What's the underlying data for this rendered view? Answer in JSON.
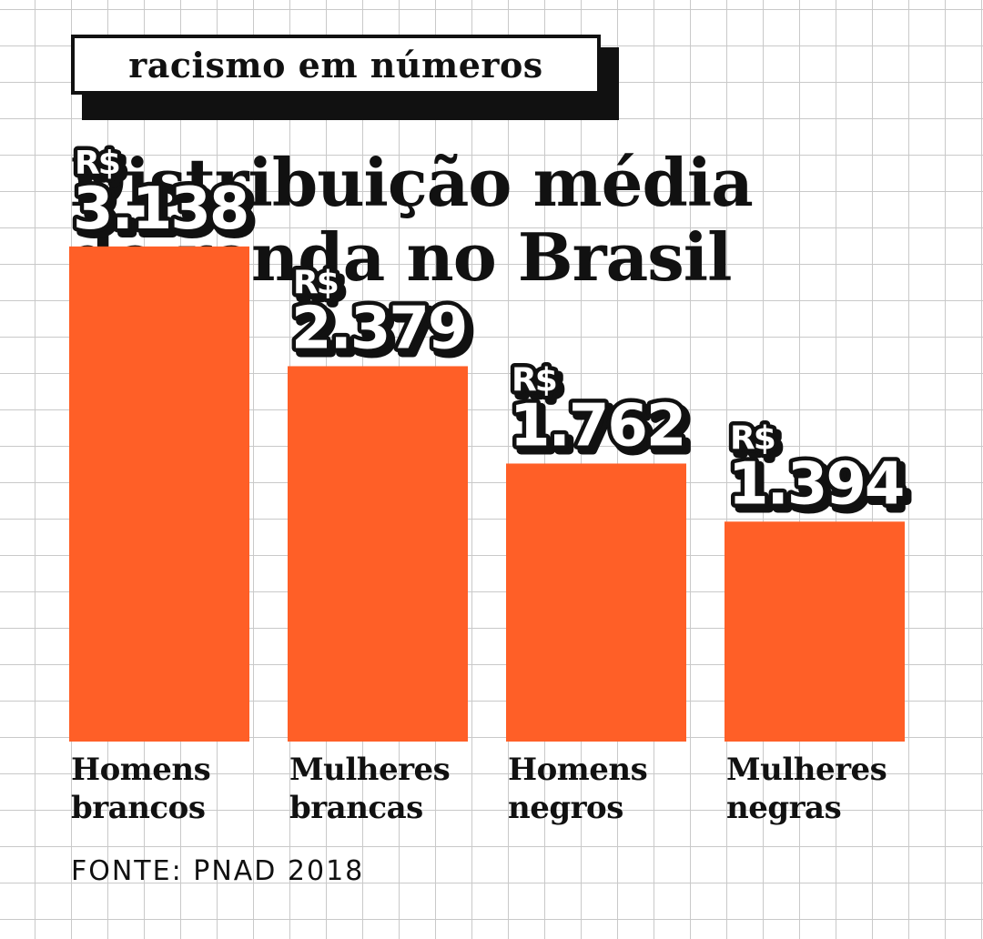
{
  "header": {
    "tag": "racismo em números"
  },
  "title": {
    "line1": "Distribuição média",
    "line2": "de renda no Brasil"
  },
  "source": "FONTE: PNAD 2018",
  "colors": {
    "bar": "#ff5f27",
    "text": "#111111",
    "grid": "#c9c9c9"
  },
  "chart_data": {
    "type": "bar",
    "title": "Distribuição média de renda no Brasil",
    "categories": [
      [
        "Homens",
        "brancos"
      ],
      [
        "Mulheres",
        "brancas"
      ],
      [
        "Homens",
        "negros"
      ],
      [
        "Mulheres",
        "negras"
      ]
    ],
    "currency": "R$",
    "values": [
      3138,
      2379,
      1762,
      1394
    ],
    "value_labels": [
      "3.138",
      "2.379",
      "1.762",
      "1.394"
    ],
    "xlabel": "",
    "ylabel": "",
    "ylim": [
      0,
      4700
    ],
    "grid": true,
    "legend": "none"
  }
}
